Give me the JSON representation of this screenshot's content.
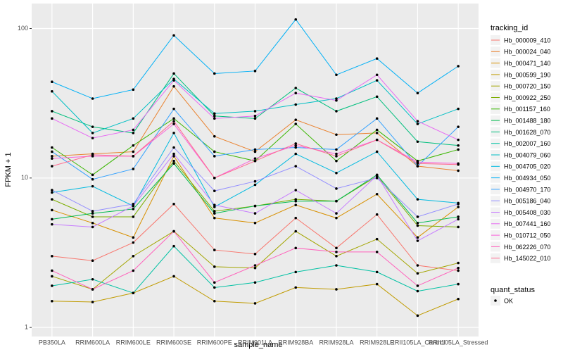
{
  "chart_data": {
    "type": "line",
    "x_label": "sample_name",
    "y_label": "FPKM + 1",
    "log_y": true,
    "grid": true,
    "legend_title": "tracking_id",
    "legend_position": "right",
    "point_legend_title": "quant_status",
    "point_legend_label": "OK",
    "categories": [
      "PB350LA",
      "RRIM600LA",
      "RRIM600LE",
      "RRIM600SE",
      "RRIM600PE",
      "RRIM901LA",
      "RRIM928BA",
      "RRIM928LA",
      "RRIM928LE",
      "RRII105LA_Control",
      "RRII105LA_Stressed"
    ],
    "ylim": [
      0.87,
      147
    ],
    "yticks": [
      1,
      10,
      100
    ],
    "series": [
      {
        "name": "Hb_000009_410",
        "color": "#F8766D",
        "values": [
          3.0,
          2.8,
          3.7,
          6.7,
          3.3,
          3.1,
          5.4,
          3.4,
          5.7,
          2.6,
          2.4
        ]
      },
      {
        "name": "Hb_000024_040",
        "color": "#EA8331",
        "values": [
          14,
          14.5,
          15,
          41,
          19,
          15,
          24.5,
          19.5,
          20,
          12,
          11.2
        ]
      },
      {
        "name": "Hb_000471_140",
        "color": "#D89000",
        "values": [
          6.1,
          5.0,
          4.0,
          14,
          5.4,
          5.0,
          6.6,
          5.4,
          7.8,
          4.0,
          6.4
        ]
      },
      {
        "name": "Hb_000599_190",
        "color": "#C09B00",
        "values": [
          1.5,
          1.48,
          1.7,
          2.2,
          1.5,
          1.45,
          1.85,
          1.8,
          1.95,
          1.2,
          1.55
        ]
      },
      {
        "name": "Hb_000720_150",
        "color": "#A3A500",
        "values": [
          2.2,
          1.8,
          3.0,
          4.4,
          2.55,
          2.5,
          4.4,
          3.0,
          3.9,
          2.3,
          2.7
        ]
      },
      {
        "name": "Hb_000922_250",
        "color": "#7CAE00",
        "values": [
          7.2,
          5.5,
          5.5,
          13,
          6.0,
          6.5,
          7.2,
          7.0,
          10.3,
          4.8,
          4.7
        ]
      },
      {
        "name": "Hb_001157_160",
        "color": "#39B600",
        "values": [
          16,
          10.5,
          16.5,
          25,
          15,
          13,
          23,
          13,
          21,
          13,
          15.5
        ]
      },
      {
        "name": "Hb_001488_180",
        "color": "#00BB4E",
        "values": [
          5.3,
          5.8,
          6.2,
          12.5,
          5.8,
          6.5,
          7.0,
          7.0,
          10.5,
          5.0,
          5.5
        ]
      },
      {
        "name": "Hb_001628_070",
        "color": "#00BF7D",
        "values": [
          28,
          22,
          20,
          50,
          26,
          25,
          40,
          28,
          35,
          17.5,
          16.5
        ]
      },
      {
        "name": "Hb_002007_160",
        "color": "#00C1A3",
        "values": [
          1.9,
          2.1,
          1.7,
          3.5,
          1.85,
          2.0,
          2.35,
          2.6,
          2.35,
          1.75,
          1.95
        ]
      },
      {
        "name": "Hb_004079_060",
        "color": "#00BFC4",
        "values": [
          38,
          20,
          25,
          46,
          27,
          28,
          31,
          34,
          45,
          23,
          29
        ]
      },
      {
        "name": "Hb_004705_020",
        "color": "#00BAE0",
        "values": [
          8.0,
          8.8,
          6.5,
          20,
          6.4,
          9.0,
          14.5,
          10.8,
          15,
          7.2,
          6.8
        ]
      },
      {
        "name": "Hb_004934_050",
        "color": "#00B0F6",
        "values": [
          44,
          34,
          39,
          90,
          50,
          52,
          115,
          49,
          63,
          37,
          56
        ]
      },
      {
        "name": "Hb_004970_170",
        "color": "#35A2FF",
        "values": [
          15,
          9.8,
          11.5,
          29,
          14,
          15.5,
          16,
          15.5,
          25,
          12,
          22
        ]
      },
      {
        "name": "Hb_005186_040",
        "color": "#9590FF",
        "values": [
          8.3,
          6.0,
          6.7,
          16,
          8.2,
          9.5,
          12,
          8.5,
          10,
          5.5,
          6.7
        ]
      },
      {
        "name": "Hb_005408_030",
        "color": "#C77CFF",
        "values": [
          4.9,
          4.7,
          6.5,
          14.5,
          6.6,
          5.8,
          8.3,
          5.8,
          10.4,
          3.8,
          5.3
        ]
      },
      {
        "name": "Hb_007441_160",
        "color": "#E76BF3",
        "values": [
          25,
          18.5,
          21,
          45,
          25,
          26,
          37,
          33,
          49,
          24,
          18
        ]
      },
      {
        "name": "Hb_010712_050",
        "color": "#FA62DB",
        "values": [
          13.5,
          14,
          14,
          23,
          10,
          13.5,
          16.5,
          14.5,
          18,
          12.8,
          12.5
        ]
      },
      {
        "name": "Hb_062226_070",
        "color": "#FF62BC",
        "values": [
          2.4,
          1.8,
          2.4,
          4.4,
          2.0,
          2.6,
          3.4,
          3.2,
          3.2,
          1.9,
          2.5
        ]
      },
      {
        "name": "Hb_145022_010",
        "color": "#FF6C91",
        "values": [
          12,
          14.3,
          14,
          24,
          10,
          13,
          17,
          14,
          18,
          12.5,
          12.3
        ]
      }
    ]
  }
}
